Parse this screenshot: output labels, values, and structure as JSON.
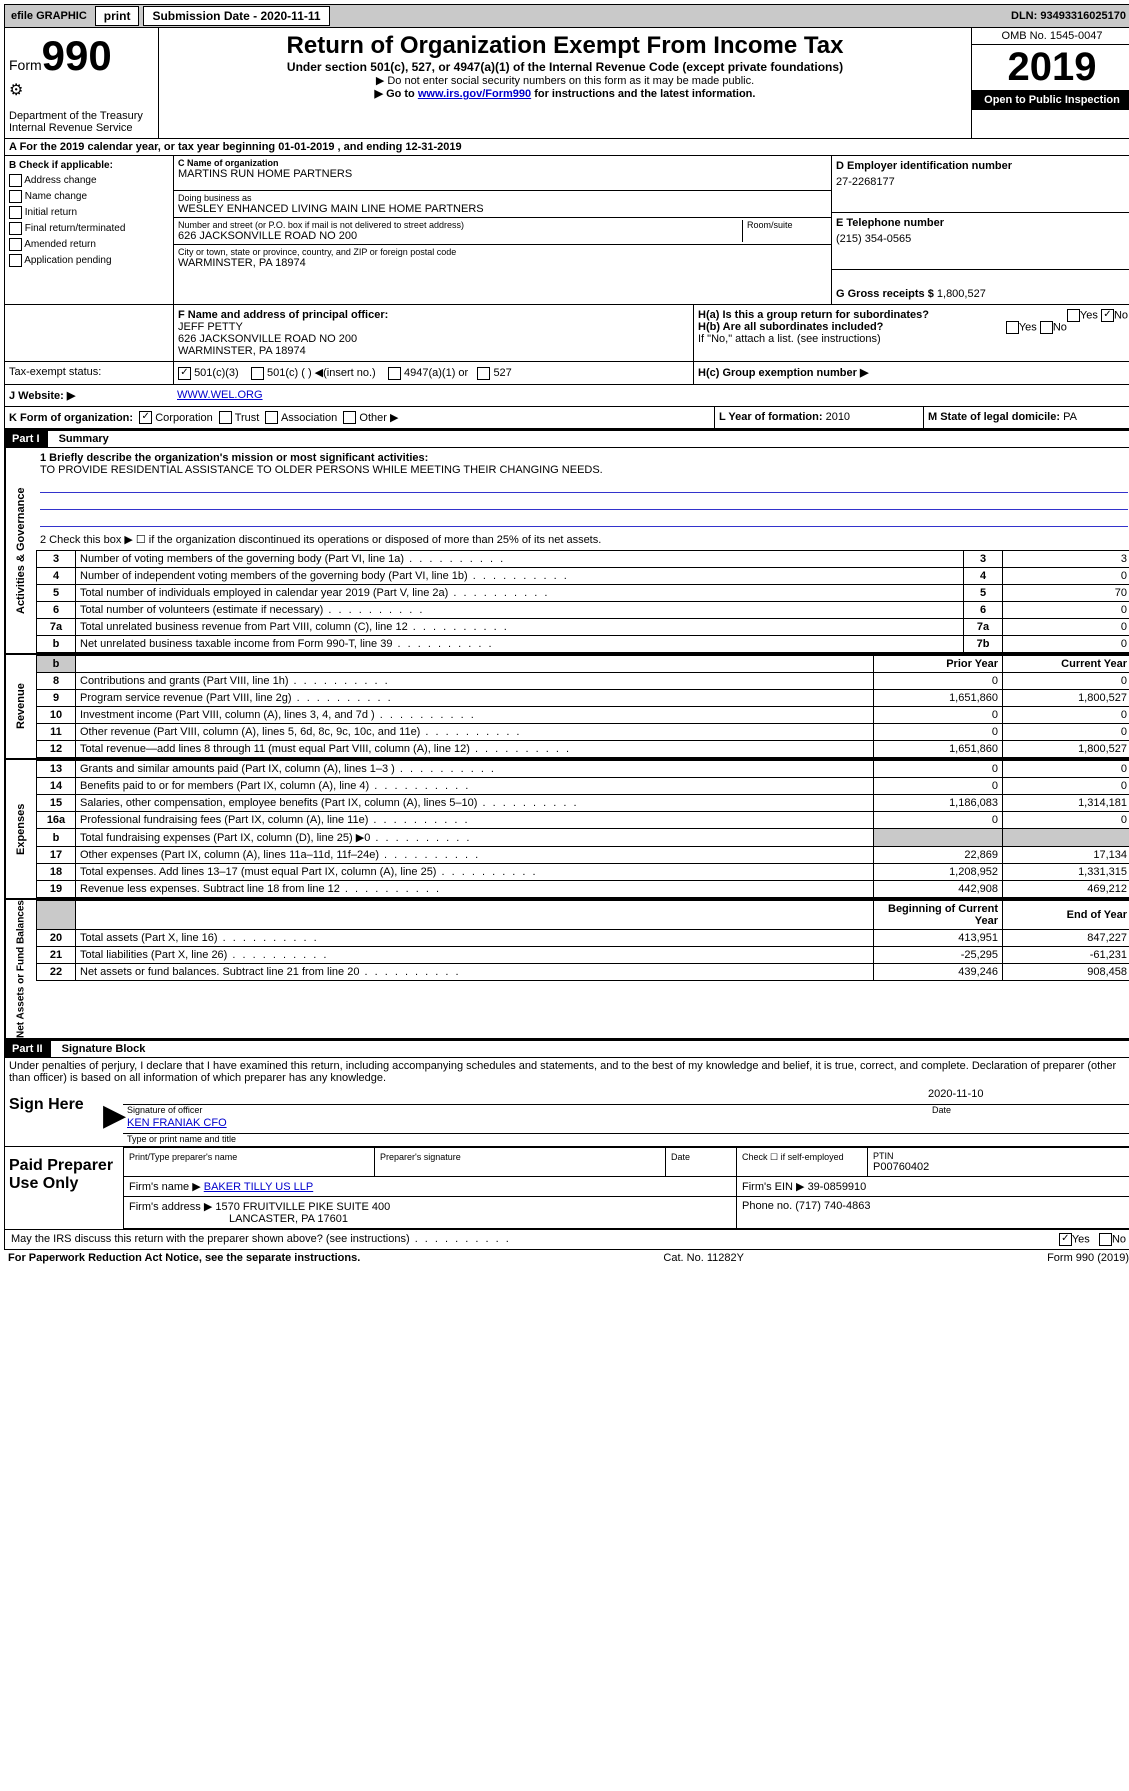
{
  "topbar": {
    "efile": "efile GRAPHIC",
    "print": "print",
    "sub_label": "Submission Date  - 2020-11-11",
    "dln": "DLN: 93493316025170"
  },
  "header": {
    "form_label": "Form",
    "form_num": "990",
    "dept": "Department of the Treasury",
    "irs": "Internal Revenue Service",
    "title": "Return of Organization Exempt From Income Tax",
    "subtitle": "Under section 501(c), 527, or 4947(a)(1) of the Internal Revenue Code (except private foundations)",
    "note1": "▶ Do not enter social security numbers on this form as it may be made public.",
    "note2_pre": "▶ Go to ",
    "note2_link": "www.irs.gov/Form990",
    "note2_post": " for instructions and the latest information.",
    "omb": "OMB No. 1545-0047",
    "year": "2019",
    "open": "Open to Public Inspection"
  },
  "line_a": "A For the 2019 calendar year, or tax year beginning 01-01-2019     , and ending 12-31-2019",
  "box_b": {
    "label": "B Check if applicable:",
    "opts": [
      "Address change",
      "Name change",
      "Initial return",
      "Final return/terminated",
      "Amended return",
      "Application pending"
    ]
  },
  "box_c": {
    "name_label": "C Name of organization",
    "name": "MARTINS RUN HOME PARTNERS",
    "dba_label": "Doing business as",
    "dba": "WESLEY ENHANCED LIVING MAIN LINE HOME PARTNERS",
    "addr_label": "Number and street (or P.O. box if mail is not delivered to street address)",
    "room_label": "Room/suite",
    "addr": "626 JACKSONVILLE ROAD NO 200",
    "city_label": "City or town, state or province, country, and ZIP or foreign postal code",
    "city": "WARMINSTER, PA  18974"
  },
  "box_d": {
    "label": "D Employer identification number",
    "val": "27-2268177"
  },
  "box_e": {
    "label": "E Telephone number",
    "val": "(215) 354-0565"
  },
  "box_g": {
    "label": "G Gross receipts $",
    "val": "1,800,527"
  },
  "box_f": {
    "label": "F  Name and address of principal officer:",
    "name": "JEFF PETTY",
    "addr1": "626 JACKSONVILLE ROAD NO 200",
    "addr2": "WARMINSTER, PA  18974"
  },
  "box_h": {
    "a_label": "H(a)  Is this a group return for subordinates?",
    "yes": "Yes",
    "no": "No",
    "b_label": "H(b)  Are all subordinates included?",
    "b_note": "If \"No,\" attach a list. (see instructions)",
    "c_label": "H(c)  Group exemption number ▶"
  },
  "box_i": {
    "label": "Tax-exempt status:",
    "o1": "501(c)(3)",
    "o2": "501(c) (  ) ◀(insert no.)",
    "o3": "4947(a)(1) or",
    "o4": "527"
  },
  "box_j": {
    "label": "J   Website: ▶",
    "val": "WWW.WEL.ORG"
  },
  "box_k": {
    "label": "K Form of organization:",
    "o1": "Corporation",
    "o2": "Trust",
    "o3": "Association",
    "o4": "Other ▶"
  },
  "box_l": {
    "label": "L Year of formation:",
    "val": "2010"
  },
  "box_m": {
    "label": "M State of legal domicile:",
    "val": "PA"
  },
  "part1": {
    "header": "Part I",
    "title": "Summary",
    "vlabel": "Activities & Governance",
    "q1": "1  Briefly describe the organization's mission or most significant activities:",
    "q1_ans": "TO PROVIDE RESIDENTIAL ASSISTANCE TO OLDER PERSONS WHILE MEETING THEIR CHANGING NEEDS.",
    "q2": "2    Check this box ▶ ☐  if the organization discontinued its operations or disposed of more than 25% of its net assets.",
    "rows": [
      {
        "n": "3",
        "t": "Number of voting members of the governing body (Part VI, line 1a)",
        "k": "3",
        "v": "3"
      },
      {
        "n": "4",
        "t": "Number of independent voting members of the governing body (Part VI, line 1b)",
        "k": "4",
        "v": "0"
      },
      {
        "n": "5",
        "t": "Total number of individuals employed in calendar year 2019 (Part V, line 2a)",
        "k": "5",
        "v": "70"
      },
      {
        "n": "6",
        "t": "Total number of volunteers (estimate if necessary)",
        "k": "6",
        "v": "0"
      },
      {
        "n": "7a",
        "t": "Total unrelated business revenue from Part VIII, column (C), line 12",
        "k": "7a",
        "v": "0"
      },
      {
        "n": "b",
        "t": "Net unrelated business taxable income from Form 990-T, line 39",
        "k": "7b",
        "v": "0"
      }
    ]
  },
  "revenue": {
    "vlabel": "Revenue",
    "h_prior": "Prior Year",
    "h_curr": "Current Year",
    "rows": [
      {
        "n": "8",
        "t": "Contributions and grants (Part VIII, line 1h)",
        "p": "0",
        "c": "0"
      },
      {
        "n": "9",
        "t": "Program service revenue (Part VIII, line 2g)",
        "p": "1,651,860",
        "c": "1,800,527"
      },
      {
        "n": "10",
        "t": "Investment income (Part VIII, column (A), lines 3, 4, and 7d )",
        "p": "0",
        "c": "0"
      },
      {
        "n": "11",
        "t": "Other revenue (Part VIII, column (A), lines 5, 6d, 8c, 9c, 10c, and 11e)",
        "p": "0",
        "c": "0"
      },
      {
        "n": "12",
        "t": "Total revenue—add lines 8 through 11 (must equal Part VIII, column (A), line 12)",
        "p": "1,651,860",
        "c": "1,800,527"
      }
    ]
  },
  "expenses": {
    "vlabel": "Expenses",
    "rows": [
      {
        "n": "13",
        "t": "Grants and similar amounts paid (Part IX, column (A), lines 1–3 )",
        "p": "0",
        "c": "0"
      },
      {
        "n": "14",
        "t": "Benefits paid to or for members (Part IX, column (A), line 4)",
        "p": "0",
        "c": "0"
      },
      {
        "n": "15",
        "t": "Salaries, other compensation, employee benefits (Part IX, column (A), lines 5–10)",
        "p": "1,186,083",
        "c": "1,314,181"
      },
      {
        "n": "16a",
        "t": "Professional fundraising fees (Part IX, column (A), line 11e)",
        "p": "0",
        "c": "0"
      },
      {
        "n": "b",
        "t": "Total fundraising expenses (Part IX, column (D), line 25) ▶0",
        "p": "",
        "c": "",
        "shade": true
      },
      {
        "n": "17",
        "t": "Other expenses (Part IX, column (A), lines 11a–11d, 11f–24e)",
        "p": "22,869",
        "c": "17,134"
      },
      {
        "n": "18",
        "t": "Total expenses. Add lines 13–17 (must equal Part IX, column (A), line 25)",
        "p": "1,208,952",
        "c": "1,331,315"
      },
      {
        "n": "19",
        "t": "Revenue less expenses. Subtract line 18 from line 12",
        "p": "442,908",
        "c": "469,212"
      }
    ]
  },
  "netassets": {
    "vlabel": "Net Assets or Fund Balances",
    "h_prior": "Beginning of Current Year",
    "h_curr": "End of Year",
    "rows": [
      {
        "n": "20",
        "t": "Total assets (Part X, line 16)",
        "p": "413,951",
        "c": "847,227"
      },
      {
        "n": "21",
        "t": "Total liabilities (Part X, line 26)",
        "p": "-25,295",
        "c": "-61,231"
      },
      {
        "n": "22",
        "t": "Net assets or fund balances. Subtract line 21 from line 20",
        "p": "439,246",
        "c": "908,458"
      }
    ]
  },
  "part2": {
    "header": "Part II",
    "title": "Signature Block",
    "decl": "Under penalties of perjury, I declare that I have examined this return, including accompanying schedules and statements, and to the best of my knowledge and belief, it is true, correct, and complete. Declaration of preparer (other than officer) is based on all information of which preparer has any knowledge."
  },
  "sign": {
    "label": "Sign Here",
    "sig_officer": "Signature of officer",
    "date": "2020-11-10",
    "date_label": "Date",
    "name": "KEN FRANIAK  CFO",
    "name_label": "Type or print name and title"
  },
  "paid": {
    "label": "Paid Preparer Use Only",
    "h1": "Print/Type preparer's name",
    "h2": "Preparer's signature",
    "h3": "Date",
    "h4": "Check ☐ if self-employed",
    "h5": "PTIN",
    "ptin": "P00760402",
    "firm_name_label": "Firm's name     ▶",
    "firm_name": "BAKER TILLY US LLP",
    "firm_ein_label": "Firm's EIN ▶",
    "firm_ein": "39-0859910",
    "firm_addr_label": "Firm's address ▶",
    "firm_addr1": "1570 FRUITVILLE PIKE SUITE 400",
    "firm_addr2": "LANCASTER, PA  17601",
    "phone_label": "Phone no.",
    "phone": "(717) 740-4863"
  },
  "footer": {
    "discuss": "May the IRS discuss this return with the preparer shown above? (see instructions)",
    "yes": "Yes",
    "no": "No",
    "pra": "For Paperwork Reduction Act Notice, see the separate instructions.",
    "cat": "Cat. No. 11282Y",
    "form": "Form 990 (2019)"
  }
}
